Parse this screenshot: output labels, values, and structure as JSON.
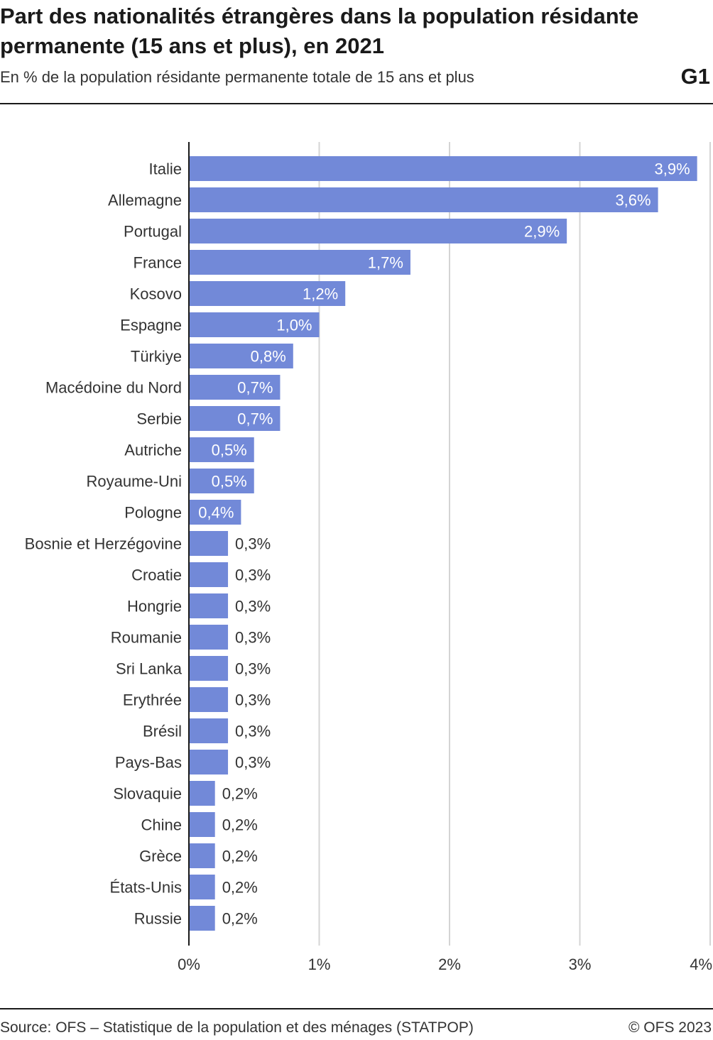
{
  "header": {
    "title": "Part des nationalités étrangères dans la population résidante permanente (15 ans et plus), en 2021",
    "subtitle": "En % de la population résidante permanente totale de 15 ans et plus",
    "chart_id": "G1"
  },
  "footer": {
    "source": "Source: OFS – Statistique de la population et des ménages (STATPOP)",
    "copyright": "© OFS 2023"
  },
  "chart_data": {
    "type": "bar",
    "orientation": "horizontal",
    "title": "Part des nationalités étrangères dans la population résidante permanente (15 ans et plus), en 2021",
    "subtitle": "En % de la population résidante permanente totale de 15 ans et plus",
    "xlabel": "",
    "ylabel": "",
    "xlim": [
      0,
      4
    ],
    "grid": true,
    "bar_color": "#7289d8",
    "tick_values": [
      0,
      1,
      2,
      3,
      4
    ],
    "tick_labels": [
      "0%",
      "1%",
      "2%",
      "3%",
      "4%"
    ],
    "categories": [
      "Italie",
      "Allemagne",
      "Portugal",
      "France",
      "Kosovo",
      "Espagne",
      "Türkiye",
      "Macédoine du Nord",
      "Serbie",
      "Autriche",
      "Royaume-Uni",
      "Pologne",
      "Bosnie et Herzégovine",
      "Croatie",
      "Hongrie",
      "Roumanie",
      "Sri Lanka",
      "Erythrée",
      "Brésil",
      "Pays-Bas",
      "Slovaquie",
      "Chine",
      "Grèce",
      "États-Unis",
      "Russie"
    ],
    "values": [
      3.9,
      3.6,
      2.9,
      1.7,
      1.2,
      1.0,
      0.8,
      0.7,
      0.7,
      0.5,
      0.5,
      0.4,
      0.3,
      0.3,
      0.3,
      0.3,
      0.3,
      0.3,
      0.3,
      0.3,
      0.2,
      0.2,
      0.2,
      0.2,
      0.2
    ],
    "value_labels": [
      "3,9%",
      "3,6%",
      "2,9%",
      "1,7%",
      "1,2%",
      "1,0%",
      "0,8%",
      "0,7%",
      "0,7%",
      "0,5%",
      "0,5%",
      "0,4%",
      "0,3%",
      "0,3%",
      "0,3%",
      "0,3%",
      "0,3%",
      "0,3%",
      "0,3%",
      "0,3%",
      "0,2%",
      "0,2%",
      "0,2%",
      "0,2%",
      "0,2%"
    ]
  }
}
